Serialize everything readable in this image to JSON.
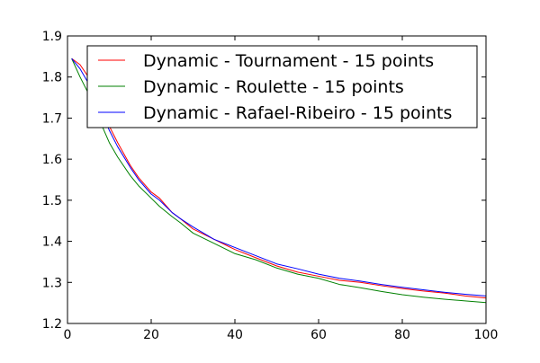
{
  "chart_data": {
    "type": "line",
    "title": "",
    "xlabel": "",
    "ylabel": "",
    "xlim": [
      0,
      100
    ],
    "ylim": [
      1.2,
      1.9
    ],
    "grid": false,
    "legend_placement": "upper-right",
    "x_tick_labels": [
      "0",
      "20",
      "40",
      "60",
      "80",
      "100"
    ],
    "y_tick_labels": [
      "1.2",
      "1.3",
      "1.4",
      "1.5",
      "1.6",
      "1.7",
      "1.8",
      "1.9"
    ],
    "x": [
      1,
      3,
      5,
      7,
      10,
      12,
      15,
      17,
      20,
      22,
      25,
      27,
      30,
      35,
      40,
      45,
      50,
      55,
      60,
      65,
      70,
      75,
      80,
      85,
      90,
      95,
      100
    ],
    "series": [
      {
        "name": "Dynamic - Tournament - 15 points",
        "color": "#ff0000",
        "values": [
          1.845,
          1.83,
          1.8,
          1.76,
          1.68,
          1.64,
          1.585,
          1.555,
          1.52,
          1.505,
          1.47,
          1.455,
          1.43,
          1.405,
          1.38,
          1.36,
          1.34,
          1.325,
          1.315,
          1.305,
          1.3,
          1.292,
          1.285,
          1.279,
          1.274,
          1.267,
          1.262
        ]
      },
      {
        "name": "Dynamic - Roulette - 15 points",
        "color": "#008000",
        "values": [
          1.845,
          1.8,
          1.76,
          1.71,
          1.64,
          1.605,
          1.56,
          1.535,
          1.505,
          1.485,
          1.46,
          1.445,
          1.42,
          1.395,
          1.37,
          1.355,
          1.335,
          1.32,
          1.31,
          1.295,
          1.287,
          1.278,
          1.27,
          1.264,
          1.259,
          1.255,
          1.251
        ]
      },
      {
        "name": "Dynamic - Rafael-Ribeiro - 15 points",
        "color": "#0000ff",
        "values": [
          1.845,
          1.82,
          1.785,
          1.745,
          1.67,
          1.63,
          1.58,
          1.55,
          1.515,
          1.5,
          1.47,
          1.455,
          1.435,
          1.405,
          1.385,
          1.365,
          1.345,
          1.333,
          1.32,
          1.31,
          1.303,
          1.295,
          1.288,
          1.282,
          1.276,
          1.271,
          1.267
        ]
      }
    ]
  }
}
